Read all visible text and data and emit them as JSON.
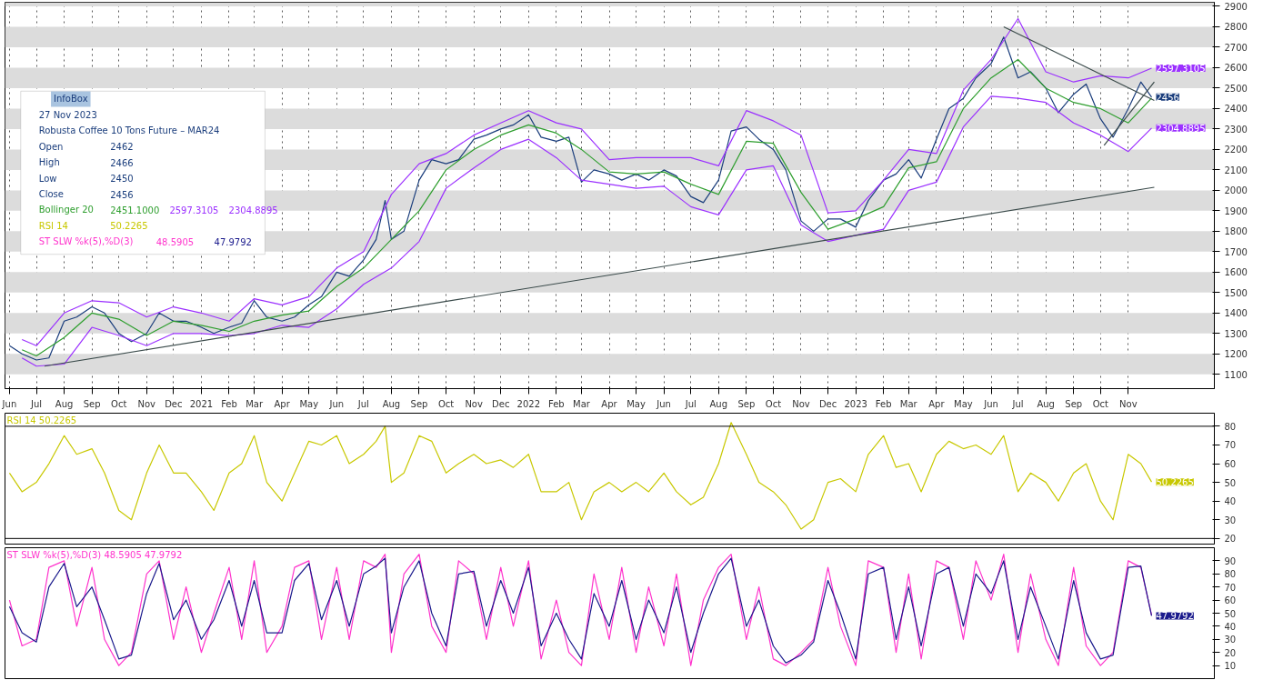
{
  "chart_data": [
    {
      "type": "line",
      "x": [
        "2020-06-01",
        "2020-06-15",
        "2020-07-01",
        "2020-07-15",
        "2020-08-01",
        "2020-08-15",
        "2020-09-01",
        "2020-09-15",
        "2020-10-01",
        "2020-10-15",
        "2020-11-01",
        "2020-11-15",
        "2020-12-01",
        "2020-12-15",
        "2021-01-01",
        "2021-01-15",
        "2021-02-01",
        "2021-02-15",
        "2021-03-01",
        "2021-03-15",
        "2021-04-01",
        "2021-04-15",
        "2021-05-01",
        "2021-05-15",
        "2021-06-01",
        "2021-06-15",
        "2021-07-01",
        "2021-07-15",
        "2021-07-25",
        "2021-08-01",
        "2021-08-15",
        "2021-09-01",
        "2021-09-15",
        "2021-10-01",
        "2021-10-15",
        "2021-11-01",
        "2021-11-15",
        "2021-12-01",
        "2021-12-15",
        "2022-01-01",
        "2022-01-15",
        "2022-02-01",
        "2022-02-15",
        "2022-03-01",
        "2022-03-15",
        "2022-04-01",
        "2022-04-15",
        "2022-05-01",
        "2022-05-15",
        "2022-06-01",
        "2022-06-15",
        "2022-07-01",
        "2022-07-15",
        "2022-08-01",
        "2022-08-15",
        "2022-09-01",
        "2022-09-15",
        "2022-10-01",
        "2022-10-15",
        "2022-11-01",
        "2022-11-15",
        "2022-12-01",
        "2022-12-15",
        "2023-01-01",
        "2023-01-15",
        "2023-02-01",
        "2023-02-15",
        "2023-03-01",
        "2023-03-15",
        "2023-04-01",
        "2023-04-15",
        "2023-05-01",
        "2023-05-15",
        "2023-06-01",
        "2023-06-15",
        "2023-07-01",
        "2023-07-15",
        "2023-08-01",
        "2023-08-15",
        "2023-09-01",
        "2023-09-15",
        "2023-10-01",
        "2023-10-15",
        "2023-11-01",
        "2023-11-15",
        "2023-11-27"
      ],
      "series": [
        {
          "color": "#1a3d7c",
          "values": [
            1240,
            1200,
            1170,
            1180,
            1360,
            1380,
            1430,
            1400,
            1300,
            1260,
            1300,
            1400,
            1360,
            1360,
            1330,
            1300,
            1330,
            1350,
            1460,
            1380,
            1360,
            1380,
            1440,
            1480,
            1600,
            1580,
            1660,
            1760,
            1950,
            1760,
            1800,
            2050,
            2150,
            2130,
            2150,
            2250,
            2270,
            2300,
            2320,
            2370,
            2260,
            2240,
            2260,
            2040,
            2100,
            2080,
            2050,
            2080,
            2050,
            2100,
            2070,
            1970,
            1940,
            2050,
            2290,
            2310,
            2250,
            2200,
            2100,
            1850,
            1800,
            1860,
            1860,
            1820,
            1950,
            2050,
            2080,
            2150,
            2060,
            2250,
            2400,
            2450,
            2550,
            2620,
            2750,
            2550,
            2580,
            2500,
            2380,
            2470,
            2520,
            2350,
            2260,
            2400,
            2530,
            2456
          ],
          "value_labels": [
            null,
            null,
            null,
            null,
            null,
            null,
            null,
            null,
            null,
            null,
            null,
            null,
            null,
            null,
            null,
            null,
            null,
            null,
            null,
            null,
            null,
            null,
            null,
            null,
            null,
            null,
            null,
            null,
            null,
            null,
            null,
            null,
            null,
            null,
            null,
            null,
            null,
            null,
            null,
            null,
            null,
            null,
            null,
            null,
            null,
            null,
            null,
            null,
            null,
            null,
            null,
            null,
            null,
            null,
            null,
            null,
            null,
            null,
            null,
            null,
            null,
            null,
            null,
            null,
            null,
            null,
            null,
            null,
            null,
            null,
            null,
            null,
            null,
            null,
            null,
            null,
            null,
            null,
            null,
            null,
            null,
            null,
            null,
            null,
            null,
            "2456"
          ]
        },
        {
          "color": "#2e9e2e",
          "x": [
            "2020-06-15",
            "2020-07-01",
            "2020-08-01",
            "2020-09-01",
            "2020-10-01",
            "2020-11-01",
            "2020-12-01",
            "2021-01-01",
            "2021-02-01",
            "2021-03-01",
            "2021-04-01",
            "2021-05-01",
            "2021-06-01",
            "2021-07-01",
            "2021-08-01",
            "2021-09-01",
            "2021-10-01",
            "2021-11-01",
            "2021-12-01",
            "2022-01-01",
            "2022-02-01",
            "2022-03-01",
            "2022-04-01",
            "2022-05-01",
            "2022-06-01",
            "2022-07-01",
            "2022-08-01",
            "2022-09-01",
            "2022-10-01",
            "2022-11-01",
            "2022-12-01",
            "2023-01-01",
            "2023-02-01",
            "2023-03-01",
            "2023-04-01",
            "2023-05-01",
            "2023-06-01",
            "2023-07-01",
            "2023-08-01",
            "2023-09-01",
            "2023-10-01",
            "2023-11-01",
            "2023-11-27"
          ],
          "values": [
            1220,
            1190,
            1280,
            1400,
            1370,
            1290,
            1360,
            1340,
            1310,
            1360,
            1390,
            1410,
            1530,
            1620,
            1760,
            1900,
            2100,
            2200,
            2270,
            2320,
            2280,
            2200,
            2090,
            2080,
            2090,
            2030,
            1980,
            2240,
            2230,
            1990,
            1810,
            1860,
            1920,
            2110,
            2140,
            2400,
            2550,
            2640,
            2500,
            2430,
            2400,
            2330,
            2451.1
          ]
        },
        {
          "color": "#9b30ff",
          "x": [
            "2020-06-15",
            "2020-07-01",
            "2020-08-01",
            "2020-09-01",
            "2020-10-01",
            "2020-11-01",
            "2020-12-01",
            "2021-01-01",
            "2021-02-01",
            "2021-03-01",
            "2021-04-01",
            "2021-05-01",
            "2021-06-01",
            "2021-07-01",
            "2021-08-01",
            "2021-09-01",
            "2021-10-01",
            "2021-11-01",
            "2021-12-01",
            "2022-01-01",
            "2022-02-01",
            "2022-03-01",
            "2022-04-01",
            "2022-05-01",
            "2022-06-01",
            "2022-07-01",
            "2022-08-01",
            "2022-09-01",
            "2022-10-01",
            "2022-11-01",
            "2022-12-01",
            "2023-01-01",
            "2023-02-01",
            "2023-03-01",
            "2023-04-01",
            "2023-05-01",
            "2023-06-01",
            "2023-07-01",
            "2023-08-01",
            "2023-09-01",
            "2023-10-01",
            "2023-11-01",
            "2023-11-27"
          ],
          "values": [
            1270,
            1240,
            1400,
            1460,
            1450,
            1380,
            1430,
            1400,
            1360,
            1470,
            1440,
            1480,
            1620,
            1700,
            1980,
            2130,
            2180,
            2270,
            2330,
            2390,
            2330,
            2300,
            2150,
            2160,
            2160,
            2160,
            2120,
            2390,
            2340,
            2270,
            1890,
            1900,
            2050,
            2200,
            2180,
            2490,
            2640,
            2840,
            2580,
            2530,
            2560,
            2550,
            2597.3105
          ],
          "value_labels": [
            null,
            null,
            null,
            null,
            null,
            null,
            null,
            null,
            null,
            null,
            null,
            null,
            null,
            null,
            null,
            null,
            null,
            null,
            null,
            null,
            null,
            null,
            null,
            null,
            null,
            null,
            null,
            null,
            null,
            null,
            null,
            null,
            null,
            null,
            null,
            null,
            null,
            null,
            null,
            null,
            null,
            null,
            "2597.3105"
          ]
        },
        {
          "color": "#9b30ff",
          "x": [
            "2020-06-15",
            "2020-07-01",
            "2020-08-01",
            "2020-09-01",
            "2020-10-01",
            "2020-11-01",
            "2020-12-01",
            "2021-01-01",
            "2021-02-01",
            "2021-03-01",
            "2021-04-01",
            "2021-05-01",
            "2021-06-01",
            "2021-07-01",
            "2021-08-01",
            "2021-09-01",
            "2021-10-01",
            "2021-11-01",
            "2021-12-01",
            "2022-01-01",
            "2022-02-01",
            "2022-03-01",
            "2022-04-01",
            "2022-05-01",
            "2022-06-01",
            "2022-07-01",
            "2022-08-01",
            "2022-09-01",
            "2022-10-01",
            "2022-11-01",
            "2022-12-01",
            "2023-01-01",
            "2023-02-01",
            "2023-03-01",
            "2023-04-01",
            "2023-05-01",
            "2023-06-01",
            "2023-07-01",
            "2023-08-01",
            "2023-09-01",
            "2023-10-01",
            "2023-11-01",
            "2023-11-27"
          ],
          "values": [
            1180,
            1140,
            1150,
            1330,
            1290,
            1240,
            1300,
            1300,
            1290,
            1300,
            1340,
            1330,
            1420,
            1540,
            1620,
            1750,
            2010,
            2110,
            2200,
            2250,
            2160,
            2050,
            2030,
            2010,
            2020,
            1920,
            1880,
            2100,
            2120,
            1830,
            1750,
            1780,
            1810,
            2000,
            2040,
            2310,
            2460,
            2450,
            2430,
            2330,
            2270,
            2190,
            2304.8895
          ],
          "value_labels": [
            null,
            null,
            null,
            null,
            null,
            null,
            null,
            null,
            null,
            null,
            null,
            null,
            null,
            null,
            null,
            null,
            null,
            null,
            null,
            null,
            null,
            null,
            null,
            null,
            null,
            null,
            null,
            null,
            null,
            null,
            null,
            null,
            null,
            null,
            null,
            null,
            null,
            null,
            null,
            null,
            null,
            null,
            "2304.8895"
          ]
        },
        {
          "color": "#3a4a4a",
          "x": [
            "2020-07-10",
            "2023-11-30"
          ],
          "values": [
            1140,
            2015
          ]
        },
        {
          "color": "#3a4a4a",
          "x": [
            "2023-06-15",
            "2023-11-30"
          ],
          "values": [
            2800,
            2440
          ]
        },
        {
          "color": "#3a4a4a",
          "x": [
            "2023-10-05",
            "2023-11-30"
          ],
          "values": [
            2220,
            2530
          ]
        }
      ],
      "xlim": [
        "2020-05-27",
        "2024-02-05"
      ],
      "xticks": [
        {
          "value": "2020-06-01",
          "label": "Jun"
        },
        {
          "value": "2020-07-01",
          "label": "Jul"
        },
        {
          "value": "2020-08-01",
          "label": "Aug"
        },
        {
          "value": "2020-09-01",
          "label": "Sep"
        },
        {
          "value": "2020-10-01",
          "label": "Oct"
        },
        {
          "value": "2020-11-01",
          "label": "Nov"
        },
        {
          "value": "2020-12-01",
          "label": "Dec"
        },
        {
          "value": "2021-01-01",
          "label": "2021"
        },
        {
          "value": "2021-02-01",
          "label": "Feb"
        },
        {
          "value": "2021-03-01",
          "label": "Mar"
        },
        {
          "value": "2021-04-01",
          "label": "Apr"
        },
        {
          "value": "2021-05-01",
          "label": "May"
        },
        {
          "value": "2021-06-01",
          "label": "Jun"
        },
        {
          "value": "2021-07-01",
          "label": "Jul"
        },
        {
          "value": "2021-08-01",
          "label": "Aug"
        },
        {
          "value": "2021-09-01",
          "label": "Sep"
        },
        {
          "value": "2021-10-01",
          "label": "Oct"
        },
        {
          "value": "2021-11-01",
          "label": "Nov"
        },
        {
          "value": "2021-12-01",
          "label": "Dec"
        },
        {
          "value": "2022-01-01",
          "label": "2022"
        },
        {
          "value": "2022-02-01",
          "label": "Feb"
        },
        {
          "value": "2022-03-01",
          "label": "Mar"
        },
        {
          "value": "2022-04-01",
          "label": "Apr"
        },
        {
          "value": "2022-05-01",
          "label": "May"
        },
        {
          "value": "2022-06-01",
          "label": "Jun"
        },
        {
          "value": "2022-07-01",
          "label": "Jul"
        },
        {
          "value": "2022-08-01",
          "label": "Aug"
        },
        {
          "value": "2022-09-01",
          "label": "Sep"
        },
        {
          "value": "2022-10-01",
          "label": "Oct"
        },
        {
          "value": "2022-11-01",
          "label": "Nov"
        },
        {
          "value": "2022-12-01",
          "label": "Dec"
        },
        {
          "value": "2023-01-01",
          "label": "2023"
        },
        {
          "value": "2023-02-01",
          "label": "Feb"
        },
        {
          "value": "2023-03-01",
          "label": "Mar"
        },
        {
          "value": "2023-04-01",
          "label": "Apr"
        },
        {
          "value": "2023-05-01",
          "label": "May"
        },
        {
          "value": "2023-06-01",
          "label": "Jun"
        },
        {
          "value": "2023-07-01",
          "label": "Jul"
        },
        {
          "value": "2023-08-01",
          "label": "Aug"
        },
        {
          "value": "2023-09-01",
          "label": "Sep"
        },
        {
          "value": "2023-10-01",
          "label": "Oct"
        },
        {
          "value": "2023-11-01",
          "label": "Nov"
        }
      ],
      "ylim": [
        1030,
        2920
      ],
      "yticks": [
        1100,
        1200,
        1300,
        1400,
        1500,
        1600,
        1700,
        1800,
        1900,
        2000,
        2100,
        2200,
        2300,
        2400,
        2500,
        2600,
        2700,
        2800,
        2900
      ],
      "grid": true,
      "marker": "none",
      "line_style": "solid",
      "annotations": [
        "InfoBox",
        "27 Nov 2023",
        "Robusta Coffee 10 Tons Future – MAR24",
        "Open",
        "2462",
        "High",
        "2466",
        "Low",
        "2450",
        "Close",
        "2456",
        "Bollinger 20",
        "2451.1000",
        "2597.3105",
        "2304.8895",
        "RSI 14",
        "50.2265",
        "ST SLW %k(5),%D(3)",
        "48.5905",
        "47.9792"
      ]
    },
    {
      "type": "line",
      "x": [
        "2020-06-01",
        "2020-06-15",
        "2020-07-01",
        "2020-07-15",
        "2020-08-01",
        "2020-08-15",
        "2020-09-01",
        "2020-09-15",
        "2020-10-01",
        "2020-10-15",
        "2020-11-01",
        "2020-11-15",
        "2020-12-01",
        "2020-12-15",
        "2021-01-01",
        "2021-01-15",
        "2021-02-01",
        "2021-02-15",
        "2021-03-01",
        "2021-03-15",
        "2021-04-01",
        "2021-04-15",
        "2021-05-01",
        "2021-05-15",
        "2021-06-01",
        "2021-06-15",
        "2021-07-01",
        "2021-07-15",
        "2021-07-25",
        "2021-08-01",
        "2021-08-15",
        "2021-09-01",
        "2021-09-15",
        "2021-10-01",
        "2021-10-15",
        "2021-11-01",
        "2021-11-15",
        "2021-12-01",
        "2021-12-15",
        "2022-01-01",
        "2022-01-15",
        "2022-02-01",
        "2022-02-15",
        "2022-03-01",
        "2022-03-15",
        "2022-04-01",
        "2022-04-15",
        "2022-05-01",
        "2022-05-15",
        "2022-06-01",
        "2022-06-15",
        "2022-07-01",
        "2022-07-15",
        "2022-08-01",
        "2022-08-15",
        "2022-09-01",
        "2022-09-15",
        "2022-10-01",
        "2022-10-15",
        "2022-11-01",
        "2022-11-15",
        "2022-12-01",
        "2022-12-15",
        "2023-01-01",
        "2023-01-15",
        "2023-02-01",
        "2023-02-15",
        "2023-03-01",
        "2023-03-15",
        "2023-04-01",
        "2023-04-15",
        "2023-05-01",
        "2023-05-15",
        "2023-06-01",
        "2023-06-15",
        "2023-07-01",
        "2023-07-15",
        "2023-08-01",
        "2023-08-15",
        "2023-09-01",
        "2023-09-15",
        "2023-10-01",
        "2023-10-15",
        "2023-11-01",
        "2023-11-15",
        "2023-11-27"
      ],
      "series": [
        {
          "color": "#c8c800",
          "values": [
            55,
            45,
            50,
            60,
            75,
            65,
            68,
            55,
            35,
            30,
            55,
            70,
            55,
            55,
            45,
            35,
            55,
            60,
            75,
            50,
            40,
            55,
            72,
            70,
            75,
            60,
            65,
            72,
            80,
            50,
            55,
            75,
            72,
            55,
            60,
            65,
            60,
            62,
            58,
            65,
            45,
            45,
            50,
            30,
            45,
            50,
            45,
            50,
            45,
            55,
            45,
            38,
            42,
            60,
            82,
            65,
            50,
            45,
            38,
            25,
            30,
            50,
            52,
            45,
            65,
            75,
            58,
            60,
            45,
            65,
            72,
            68,
            70,
            65,
            75,
            45,
            55,
            50,
            40,
            55,
            60,
            40,
            30,
            65,
            60,
            50.2265
          ],
          "value_labels": [
            null,
            null,
            null,
            null,
            null,
            null,
            null,
            null,
            null,
            null,
            null,
            null,
            null,
            null,
            null,
            null,
            null,
            null,
            null,
            null,
            null,
            null,
            null,
            null,
            null,
            null,
            null,
            null,
            null,
            null,
            null,
            null,
            null,
            null,
            null,
            null,
            null,
            null,
            null,
            null,
            null,
            null,
            null,
            null,
            null,
            null,
            null,
            null,
            null,
            null,
            null,
            null,
            null,
            null,
            null,
            null,
            null,
            null,
            null,
            null,
            null,
            null,
            null,
            null,
            null,
            null,
            null,
            null,
            null,
            null,
            null,
            null,
            null,
            null,
            null,
            null,
            null,
            null,
            null,
            null,
            null,
            null,
            null,
            null,
            null,
            "50.2265"
          ]
        }
      ],
      "xlim": [
        "2020-05-27",
        "2024-02-05"
      ],
      "ylim": [
        17,
        87
      ],
      "yticks": [
        20,
        30,
        40,
        50,
        60,
        70,
        80
      ],
      "tick_labels": "y",
      "grid": false,
      "marker": "none",
      "line_style": "solid",
      "ref_lines": [
        {
          "axis": "y",
          "value": 80,
          "color": "#000000"
        },
        {
          "axis": "y",
          "value": 20,
          "color": "#000000"
        }
      ],
      "annotations": [
        "RSI 14 50.2265"
      ]
    },
    {
      "type": "line",
      "x": [
        "2020-06-01",
        "2020-06-15",
        "2020-07-01",
        "2020-07-15",
        "2020-08-01",
        "2020-08-15",
        "2020-09-01",
        "2020-09-15",
        "2020-10-01",
        "2020-10-15",
        "2020-11-01",
        "2020-11-15",
        "2020-12-01",
        "2020-12-15",
        "2021-01-01",
        "2021-01-15",
        "2021-02-01",
        "2021-02-15",
        "2021-03-01",
        "2021-03-15",
        "2021-04-01",
        "2021-04-15",
        "2021-05-01",
        "2021-05-15",
        "2021-06-01",
        "2021-06-15",
        "2021-07-01",
        "2021-07-15",
        "2021-07-25",
        "2021-08-01",
        "2021-08-15",
        "2021-09-01",
        "2021-09-15",
        "2021-10-01",
        "2021-10-15",
        "2021-11-01",
        "2021-11-15",
        "2021-12-01",
        "2021-12-15",
        "2022-01-01",
        "2022-01-15",
        "2022-02-01",
        "2022-02-15",
        "2022-03-01",
        "2022-03-15",
        "2022-04-01",
        "2022-04-15",
        "2022-05-01",
        "2022-05-15",
        "2022-06-01",
        "2022-06-15",
        "2022-07-01",
        "2022-07-15",
        "2022-08-01",
        "2022-08-15",
        "2022-09-01",
        "2022-09-15",
        "2022-10-01",
        "2022-10-15",
        "2022-11-01",
        "2022-11-15",
        "2022-12-01",
        "2022-12-15",
        "2023-01-01",
        "2023-01-15",
        "2023-02-01",
        "2023-02-15",
        "2023-03-01",
        "2023-03-15",
        "2023-04-01",
        "2023-04-15",
        "2023-05-01",
        "2023-05-15",
        "2023-06-01",
        "2023-06-15",
        "2023-07-01",
        "2023-07-15",
        "2023-08-01",
        "2023-08-15",
        "2023-09-01",
        "2023-09-15",
        "2023-10-01",
        "2023-10-15",
        "2023-11-01",
        "2023-11-15",
        "2023-11-27"
      ],
      "series": [
        {
          "color": "#ff33cc",
          "values": [
            60,
            25,
            30,
            85,
            90,
            40,
            85,
            30,
            10,
            20,
            80,
            90,
            30,
            70,
            20,
            50,
            85,
            30,
            90,
            20,
            40,
            85,
            90,
            30,
            85,
            30,
            90,
            85,
            95,
            20,
            80,
            95,
            40,
            20,
            90,
            80,
            30,
            85,
            40,
            90,
            15,
            60,
            20,
            10,
            80,
            30,
            85,
            20,
            70,
            25,
            80,
            10,
            60,
            85,
            95,
            30,
            70,
            15,
            10,
            20,
            30,
            85,
            40,
            10,
            90,
            85,
            20,
            80,
            15,
            90,
            85,
            30,
            90,
            60,
            95,
            20,
            80,
            30,
            10,
            85,
            25,
            10,
            20,
            90,
            85,
            48.5905
          ]
        },
        {
          "color": "#1a1a8c",
          "values": [
            55,
            35,
            28,
            70,
            88,
            55,
            70,
            45,
            15,
            18,
            65,
            88,
            45,
            60,
            30,
            45,
            75,
            40,
            75,
            35,
            35,
            75,
            88,
            45,
            75,
            40,
            80,
            86,
            92,
            35,
            70,
            90,
            50,
            25,
            80,
            82,
            40,
            75,
            50,
            85,
            25,
            50,
            30,
            15,
            65,
            40,
            75,
            30,
            60,
            35,
            70,
            20,
            50,
            80,
            92,
            40,
            60,
            25,
            12,
            18,
            28,
            75,
            50,
            15,
            80,
            85,
            30,
            70,
            25,
            80,
            85,
            40,
            80,
            65,
            90,
            30,
            70,
            40,
            15,
            75,
            35,
            15,
            18,
            85,
            86,
            47.9792
          ],
          "value_labels": [
            null,
            null,
            null,
            null,
            null,
            null,
            null,
            null,
            null,
            null,
            null,
            null,
            null,
            null,
            null,
            null,
            null,
            null,
            null,
            null,
            null,
            null,
            null,
            null,
            null,
            null,
            null,
            null,
            null,
            null,
            null,
            null,
            null,
            null,
            null,
            null,
            null,
            null,
            null,
            null,
            null,
            null,
            null,
            null,
            null,
            null,
            null,
            null,
            null,
            null,
            null,
            null,
            null,
            null,
            null,
            null,
            null,
            null,
            null,
            null,
            null,
            null,
            null,
            null,
            null,
            null,
            null,
            null,
            null,
            null,
            null,
            null,
            null,
            null,
            null,
            null,
            null,
            null,
            null,
            null,
            null,
            null,
            null,
            null,
            null,
            "47.9792"
          ]
        }
      ],
      "xlim": [
        "2020-05-27",
        "2024-02-05"
      ],
      "ylim": [
        0,
        100
      ],
      "yticks": [
        10,
        20,
        30,
        40,
        50,
        60,
        70,
        80,
        90
      ],
      "tick_labels": "y",
      "grid": false,
      "marker": "none",
      "line_style": "solid",
      "annotations": [
        "ST SLW %k(5),%D(3) 48.5905 47.9792"
      ]
    }
  ]
}
